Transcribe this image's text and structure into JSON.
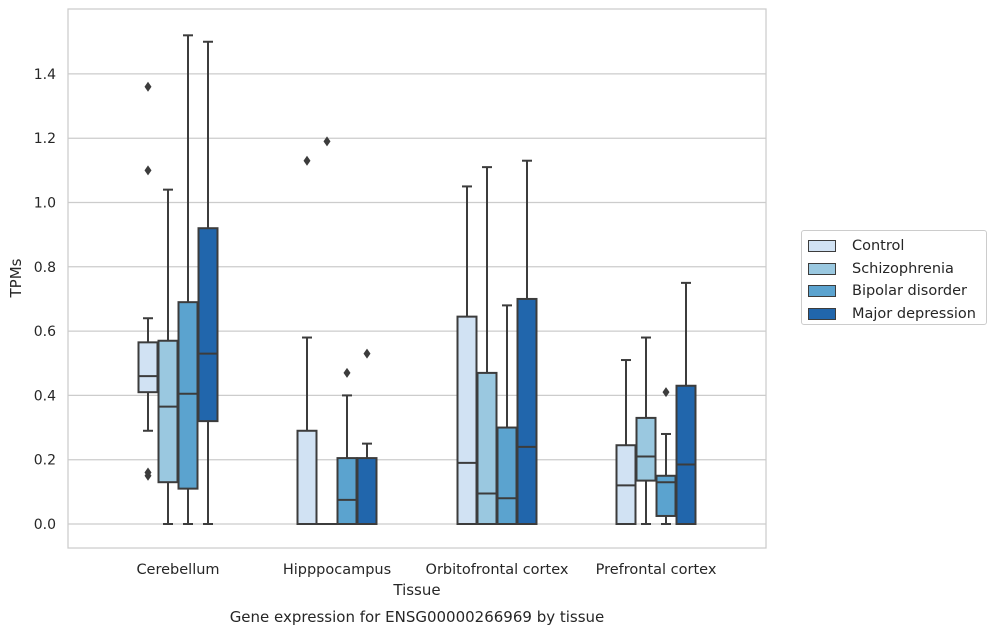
{
  "chart_data": {
    "type": "boxplot",
    "caption": "Gene expression for ENSG00000266969 by tissue",
    "xlabel": "Tissue",
    "ylabel": "TPMs",
    "ylim": [
      -0.07,
      1.59
    ],
    "yticks": [
      "0.0",
      "0.2",
      "0.4",
      "0.6",
      "0.8",
      "1.0",
      "1.2",
      "1.4"
    ],
    "ytick_values": [
      0.0,
      0.2,
      0.4,
      0.6,
      0.8,
      1.0,
      1.2,
      1.4
    ],
    "grid": true,
    "legend_position": "right",
    "categories": [
      "Cerebellum",
      "Hipppocampus",
      "Orbitofrontal cortex",
      "Prefrontal cortex"
    ],
    "series": [
      {
        "name": "Control",
        "color": "#d1e2f3",
        "boxes": [
          {
            "whislo": 0.29,
            "q1": 0.41,
            "med": 0.46,
            "q3": 0.565,
            "whishi": 0.64,
            "fliers": [
              1.36,
              1.1,
              0.16,
              0.15
            ]
          },
          {
            "whislo": 0.0,
            "q1": 0.0,
            "med": 0.0,
            "q3": 0.29,
            "whishi": 0.58,
            "fliers": [
              1.13
            ]
          },
          {
            "whislo": 0.0,
            "q1": 0.0,
            "med": 0.19,
            "q3": 0.645,
            "whishi": 1.05,
            "fliers": []
          },
          {
            "whislo": 0.0,
            "q1": 0.0,
            "med": 0.12,
            "q3": 0.245,
            "whishi": 0.51,
            "fliers": []
          }
        ]
      },
      {
        "name": "Schizophrenia",
        "color": "#9ac8e0",
        "boxes": [
          {
            "whislo": 0.0,
            "q1": 0.13,
            "med": 0.365,
            "q3": 0.57,
            "whishi": 1.04,
            "fliers": []
          },
          {
            "whislo": 0.0,
            "q1": 0.0,
            "med": 0.0,
            "q3": 0.0,
            "whishi": 0.0,
            "fliers": [
              1.19
            ]
          },
          {
            "whislo": 0.0,
            "q1": 0.0,
            "med": 0.095,
            "q3": 0.47,
            "whishi": 1.11,
            "fliers": []
          },
          {
            "whislo": 0.0,
            "q1": 0.135,
            "med": 0.21,
            "q3": 0.33,
            "whishi": 0.58,
            "fliers": []
          }
        ]
      },
      {
        "name": "Bipolar disorder",
        "color": "#5ba3cf",
        "boxes": [
          {
            "whislo": 0.0,
            "q1": 0.11,
            "med": 0.405,
            "q3": 0.69,
            "whishi": 1.52,
            "fliers": []
          },
          {
            "whislo": 0.0,
            "q1": 0.0,
            "med": 0.075,
            "q3": 0.205,
            "whishi": 0.4,
            "fliers": [
              0.47
            ]
          },
          {
            "whislo": 0.0,
            "q1": 0.0,
            "med": 0.08,
            "q3": 0.3,
            "whishi": 0.68,
            "fliers": []
          },
          {
            "whislo": 0.0,
            "q1": 0.025,
            "med": 0.13,
            "q3": 0.15,
            "whishi": 0.28,
            "fliers": [
              0.41
            ]
          }
        ]
      },
      {
        "name": "Major depression",
        "color": "#2166ac",
        "boxes": [
          {
            "whislo": 0.0,
            "q1": 0.32,
            "med": 0.53,
            "q3": 0.92,
            "whishi": 1.5,
            "fliers": []
          },
          {
            "whislo": 0.0,
            "q1": 0.0,
            "med": 0.0,
            "q3": 0.205,
            "whishi": 0.25,
            "fliers": [
              0.53
            ]
          },
          {
            "whislo": 0.0,
            "q1": 0.0,
            "med": 0.24,
            "q3": 0.7,
            "whishi": 1.13,
            "fliers": []
          },
          {
            "whislo": 0.0,
            "q1": 0.0,
            "med": 0.185,
            "q3": 0.43,
            "whishi": 0.75,
            "fliers": []
          }
        ]
      }
    ]
  }
}
